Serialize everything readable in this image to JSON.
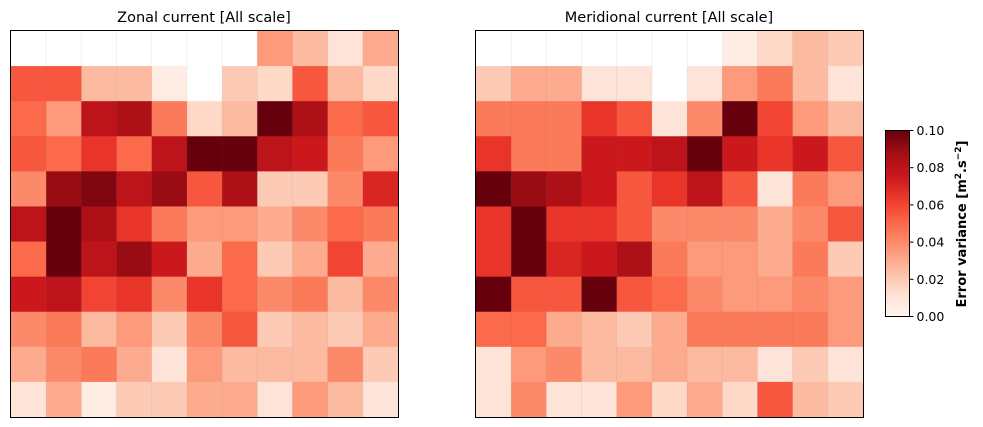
{
  "colorbar": {
    "label_main": "Error variance [m",
    "label_sup1": "2",
    "label_mid": ".s",
    "label_sup2": "−2",
    "label_end": "]",
    "ticks": [
      "0.00",
      "0.02",
      "0.04",
      "0.06",
      "0.08",
      "0.10"
    ],
    "colormap": "Reds",
    "colors": [
      "#fff5f0",
      "#fee0d2",
      "#fcbba1",
      "#fc9272",
      "#fb6a4a",
      "#ef3b2c",
      "#cb181d",
      "#a50f15",
      "#67000d"
    ]
  },
  "chart_data": [
    {
      "type": "heatmap",
      "title": "Zonal current [All scale]",
      "vmin": 0,
      "vmax": 0.1,
      "rows": 11,
      "cols": 11,
      "grid": true,
      "values": [
        [
          null,
          null,
          null,
          null,
          null,
          null,
          null,
          0.035,
          0.025,
          0.01,
          0.03
        ],
        [
          0.055,
          0.055,
          0.025,
          0.025,
          0.005,
          null,
          0.02,
          0.015,
          0.055,
          0.025,
          0.015
        ],
        [
          0.05,
          0.035,
          0.08,
          0.085,
          0.045,
          0.015,
          0.025,
          0.1,
          0.085,
          0.05,
          0.055
        ],
        [
          0.055,
          0.05,
          0.065,
          0.05,
          0.08,
          0.1,
          0.1,
          0.08,
          0.075,
          0.045,
          0.035
        ],
        [
          0.04,
          0.09,
          0.095,
          0.08,
          0.09,
          0.055,
          0.085,
          0.02,
          0.02,
          0.04,
          0.07
        ],
        [
          0.08,
          0.1,
          0.085,
          0.065,
          0.045,
          0.035,
          0.035,
          0.03,
          0.04,
          0.05,
          0.045
        ],
        [
          0.05,
          0.1,
          0.08,
          0.09,
          0.075,
          0.03,
          0.05,
          0.02,
          0.03,
          0.06,
          0.03
        ],
        [
          0.075,
          0.08,
          0.06,
          0.065,
          0.04,
          0.065,
          0.05,
          0.04,
          0.045,
          0.025,
          0.04
        ],
        [
          0.04,
          0.045,
          0.025,
          0.035,
          0.02,
          0.04,
          0.055,
          0.02,
          0.025,
          0.02,
          0.03
        ],
        [
          0.03,
          0.04,
          0.045,
          0.03,
          0.01,
          0.035,
          0.025,
          0.025,
          0.025,
          0.04,
          0.02
        ],
        [
          0.01,
          0.03,
          0.005,
          0.02,
          0.02,
          0.03,
          0.03,
          0.01,
          0.035,
          0.025,
          0.01
        ]
      ]
    },
    {
      "type": "heatmap",
      "title": "Meridional current [All scale]",
      "vmin": 0,
      "vmax": 0.1,
      "rows": 11,
      "cols": 11,
      "grid": true,
      "values": [
        [
          null,
          null,
          null,
          null,
          null,
          null,
          null,
          0.005,
          0.015,
          0.025,
          0.02
        ],
        [
          0.02,
          0.03,
          0.03,
          0.01,
          0.01,
          null,
          0.01,
          0.035,
          0.045,
          0.025,
          0.01
        ],
        [
          0.045,
          0.045,
          0.045,
          0.065,
          0.055,
          0.01,
          0.04,
          0.1,
          0.06,
          0.035,
          0.025
        ],
        [
          0.065,
          0.045,
          0.045,
          0.075,
          0.075,
          0.08,
          0.1,
          0.075,
          0.065,
          0.075,
          0.055
        ],
        [
          0.1,
          0.09,
          0.085,
          0.075,
          0.055,
          0.065,
          0.08,
          0.055,
          0.01,
          0.045,
          0.035
        ],
        [
          0.065,
          0.1,
          0.065,
          0.065,
          0.055,
          0.04,
          0.04,
          0.04,
          0.03,
          0.04,
          0.055
        ],
        [
          0.065,
          0.1,
          0.07,
          0.075,
          0.085,
          0.045,
          0.035,
          0.035,
          0.03,
          0.045,
          0.02
        ],
        [
          0.1,
          0.055,
          0.055,
          0.1,
          0.055,
          0.05,
          0.04,
          0.035,
          0.035,
          0.04,
          0.035
        ],
        [
          0.05,
          0.05,
          0.03,
          0.025,
          0.02,
          0.03,
          0.045,
          0.045,
          0.045,
          0.045,
          0.035
        ],
        [
          0.01,
          0.035,
          0.04,
          0.025,
          0.025,
          0.03,
          0.025,
          0.025,
          0.01,
          0.02,
          0.01
        ],
        [
          0.01,
          0.04,
          0.01,
          0.01,
          0.035,
          0.015,
          0.03,
          0.015,
          0.055,
          0.025,
          0.02
        ]
      ]
    }
  ]
}
